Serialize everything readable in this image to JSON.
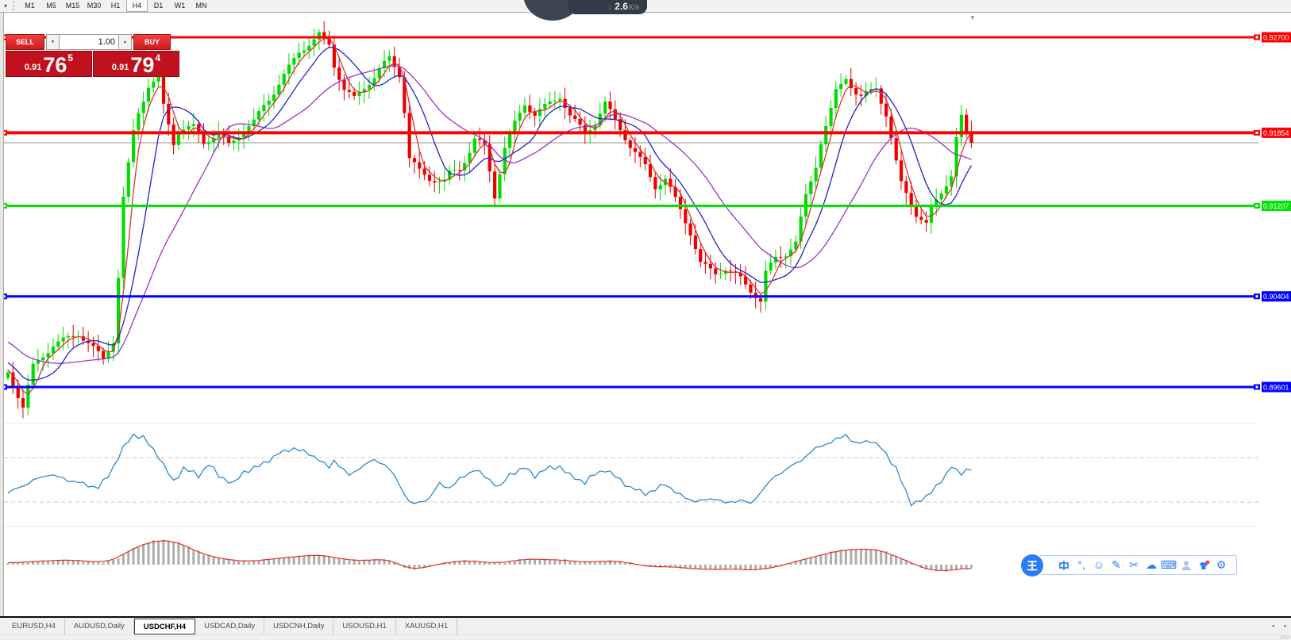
{
  "toolbar": {
    "timeframes": [
      "M1",
      "M5",
      "M15",
      "M30",
      "H1",
      "H4",
      "D1",
      "W1",
      "MN"
    ],
    "active_timeframe": "H4"
  },
  "one_click": {
    "sell_label": "SELL",
    "buy_label": "BUY",
    "volume": "1.00",
    "bid": {
      "small": "0.91",
      "big": "76",
      "sup": "5"
    },
    "ask": {
      "small": "0.91",
      "big": "79",
      "sup": "4"
    }
  },
  "net_overlay": {
    "down_speed": "2.6",
    "unit": "K/s"
  },
  "icons": {
    "toolbar_caret": "▾",
    "spinner_down": "▼",
    "spinner_up": "▲",
    "panel_collapse": "▼",
    "net_down_arrow": "↓",
    "tab_scroll_left": "◄",
    "tab_scroll_right": "►",
    "emoji": "☺",
    "handwriting": "✎",
    "screenshot": "✂",
    "cloud": "☁",
    "keyboard": "⌨",
    "settings": "⚙",
    "punctuation": "°,"
  },
  "chart": {
    "symbol": "USDCHF",
    "period": "H4",
    "bid_price": 0.91765,
    "colors": {
      "bull": "#00DC00",
      "bear": "#EE0000",
      "ma_fast": "#D83434",
      "ma_mid": "#2222CC",
      "ma_slow": "#9933CC",
      "indicator_line": "#2E86D0",
      "histogram": "#ADADAD",
      "signal": "#E03030",
      "bid_line": "#909090",
      "level_dash": "#C8C8C8"
    },
    "hlines": [
      {
        "price": "0.92700",
        "color": "#FF0000",
        "width": 3
      },
      {
        "price": "0.91854",
        "color": "#FF0000",
        "width": 4
      },
      {
        "price": "0.91207",
        "color": "#00E400",
        "width": 3
      },
      {
        "price": "0.90404",
        "color": "#0000FF",
        "width": 3
      },
      {
        "price": "0.89601",
        "color": "#0000FF",
        "width": 3
      }
    ],
    "candle_pivots": [
      [
        0,
        0.8973
      ],
      [
        3,
        0.8941
      ],
      [
        5,
        0.8976
      ],
      [
        9,
        0.8994
      ],
      [
        14,
        0.9004
      ],
      [
        16,
        0.8996
      ],
      [
        19,
        0.8983
      ],
      [
        21,
        0.9
      ],
      [
        22,
        0.9057
      ],
      [
        23,
        0.9127
      ],
      [
        25,
        0.9187
      ],
      [
        26,
        0.9205
      ],
      [
        28,
        0.9229
      ],
      [
        30,
        0.9236
      ],
      [
        31,
        0.9212
      ],
      [
        33,
        0.918
      ],
      [
        34,
        0.9191
      ],
      [
        37,
        0.9194
      ],
      [
        39,
        0.918
      ],
      [
        42,
        0.9187
      ],
      [
        44,
        0.9176
      ],
      [
        46,
        0.9184
      ],
      [
        49,
        0.9194
      ],
      [
        51,
        0.9208
      ],
      [
        53,
        0.9219
      ],
      [
        56,
        0.924
      ],
      [
        58,
        0.9254
      ],
      [
        61,
        0.9264
      ],
      [
        62,
        0.9269
      ],
      [
        64,
        0.9261
      ],
      [
        65,
        0.9243
      ],
      [
        67,
        0.9222
      ],
      [
        69,
        0.9215
      ],
      [
        71,
        0.9226
      ],
      [
        73,
        0.9236
      ],
      [
        74,
        0.9243
      ],
      [
        76,
        0.9254
      ],
      [
        78,
        0.924
      ],
      [
        79,
        0.9208
      ],
      [
        80,
        0.9166
      ],
      [
        82,
        0.9155
      ],
      [
        84,
        0.9148
      ],
      [
        87,
        0.9145
      ],
      [
        88,
        0.9152
      ],
      [
        90,
        0.9155
      ],
      [
        92,
        0.917
      ],
      [
        93,
        0.918
      ],
      [
        95,
        0.9173
      ],
      [
        97,
        0.9128
      ],
      [
        99,
        0.917
      ],
      [
        101,
        0.9191
      ],
      [
        103,
        0.9208
      ],
      [
        105,
        0.9198
      ],
      [
        107,
        0.9205
      ],
      [
        110,
        0.9215
      ],
      [
        112,
        0.9198
      ],
      [
        115,
        0.9184
      ],
      [
        117,
        0.9194
      ],
      [
        119,
        0.9212
      ],
      [
        122,
        0.9191
      ],
      [
        124,
        0.9176
      ],
      [
        127,
        0.9159
      ],
      [
        129,
        0.9141
      ],
      [
        131,
        0.9148
      ],
      [
        134,
        0.912
      ],
      [
        136,
        0.9099
      ],
      [
        138,
        0.9071
      ],
      [
        141,
        0.9061
      ],
      [
        143,
        0.9064
      ],
      [
        146,
        0.9054
      ],
      [
        148,
        0.9043
      ],
      [
        150,
        0.9033
      ],
      [
        151,
        0.9058
      ],
      [
        153,
        0.9071
      ],
      [
        155,
        0.9075
      ],
      [
        157,
        0.9085
      ],
      [
        159,
        0.9127
      ],
      [
        161,
        0.9155
      ],
      [
        162,
        0.9176
      ],
      [
        164,
        0.9205
      ],
      [
        165,
        0.9222
      ],
      [
        167,
        0.9236
      ],
      [
        169,
        0.9222
      ],
      [
        170,
        0.9219
      ],
      [
        172,
        0.9226
      ],
      [
        173,
        0.9229
      ],
      [
        175,
        0.9205
      ],
      [
        177,
        0.9162
      ],
      [
        178,
        0.9144
      ],
      [
        180,
        0.9127
      ],
      [
        181,
        0.9116
      ],
      [
        183,
        0.9106
      ],
      [
        184,
        0.912
      ],
      [
        186,
        0.9134
      ],
      [
        188,
        0.9148
      ],
      [
        189,
        0.918
      ],
      [
        190,
        0.9198
      ],
      [
        191,
        0.9183
      ],
      [
        192,
        0.91765
      ]
    ]
  },
  "indicator1": {
    "levels": [
      70,
      30
    ],
    "pivots": [
      [
        0,
        37.9
      ],
      [
        3,
        45
      ],
      [
        8,
        55
      ],
      [
        13,
        48.6
      ],
      [
        18,
        42.9
      ],
      [
        20,
        53.6
      ],
      [
        23,
        78.6
      ],
      [
        25,
        90.7
      ],
      [
        27,
        87.9
      ],
      [
        30,
        71.4
      ],
      [
        33,
        47.9
      ],
      [
        35,
        60.7
      ],
      [
        38,
        53.6
      ],
      [
        40,
        64.3
      ],
      [
        42,
        53.6
      ],
      [
        45,
        46.4
      ],
      [
        47,
        57.1
      ],
      [
        50,
        62.1
      ],
      [
        52,
        67.9
      ],
      [
        54,
        73.6
      ],
      [
        57,
        78.6
      ],
      [
        59,
        75
      ],
      [
        61,
        71.4
      ],
      [
        64,
        60.7
      ],
      [
        65,
        67.9
      ],
      [
        68,
        53.6
      ],
      [
        70,
        60.7
      ],
      [
        73,
        67.9
      ],
      [
        75,
        64.3
      ],
      [
        77,
        53.6
      ],
      [
        80,
        30
      ],
      [
        81,
        27.9
      ],
      [
        84,
        33.6
      ],
      [
        86,
        46.4
      ],
      [
        88,
        42.9
      ],
      [
        91,
        53.6
      ],
      [
        93,
        59.3
      ],
      [
        96,
        50
      ],
      [
        98,
        42.9
      ],
      [
        100,
        55
      ],
      [
        103,
        60.7
      ],
      [
        105,
        53.6
      ],
      [
        107,
        59.3
      ],
      [
        110,
        62.1
      ],
      [
        112,
        53.6
      ],
      [
        115,
        47.9
      ],
      [
        117,
        55
      ],
      [
        119,
        59.3
      ],
      [
        122,
        50
      ],
      [
        124,
        42.9
      ],
      [
        127,
        37.9
      ],
      [
        129,
        40.7
      ],
      [
        131,
        46.4
      ],
      [
        134,
        35.7
      ],
      [
        136,
        32.1
      ],
      [
        138,
        30.7
      ],
      [
        141,
        33.6
      ],
      [
        143,
        28.6
      ],
      [
        146,
        32.1
      ],
      [
        148,
        27.9
      ],
      [
        150,
        39.3
      ],
      [
        153,
        53.6
      ],
      [
        155,
        59.3
      ],
      [
        157,
        64.3
      ],
      [
        160,
        75
      ],
      [
        162,
        80.7
      ],
      [
        165,
        85.7
      ],
      [
        167,
        90.7
      ],
      [
        169,
        82.1
      ],
      [
        172,
        85.7
      ],
      [
        174,
        78.6
      ],
      [
        177,
        60.7
      ],
      [
        179,
        37.9
      ],
      [
        180,
        28.6
      ],
      [
        183,
        33.6
      ],
      [
        185,
        45
      ],
      [
        187,
        53.6
      ],
      [
        188,
        62.1
      ],
      [
        190,
        56.4
      ],
      [
        192,
        59.3
      ]
    ]
  },
  "indicator2": {
    "pivots": [
      [
        0,
        2
      ],
      [
        3,
        3
      ],
      [
        8,
        5
      ],
      [
        13,
        6
      ],
      [
        16,
        4
      ],
      [
        19,
        3
      ],
      [
        22,
        8
      ],
      [
        24,
        18
      ],
      [
        27,
        25
      ],
      [
        29,
        30
      ],
      [
        31,
        31
      ],
      [
        34,
        28
      ],
      [
        36,
        22
      ],
      [
        38,
        15
      ],
      [
        41,
        10
      ],
      [
        43,
        7
      ],
      [
        46,
        5
      ],
      [
        48,
        4
      ],
      [
        51,
        6
      ],
      [
        54,
        8
      ],
      [
        57,
        10
      ],
      [
        61,
        12
      ],
      [
        63,
        12
      ],
      [
        65,
        9
      ],
      [
        68,
        6
      ],
      [
        70,
        5
      ],
      [
        73,
        6
      ],
      [
        75,
        7
      ],
      [
        77,
        4
      ],
      [
        79,
        -3
      ],
      [
        80,
        -6
      ],
      [
        82,
        -5
      ],
      [
        84,
        -2
      ],
      [
        87,
        2
      ],
      [
        89,
        4
      ],
      [
        92,
        5
      ],
      [
        94,
        4
      ],
      [
        96,
        2
      ],
      [
        99,
        3
      ],
      [
        101,
        5
      ],
      [
        103,
        7
      ],
      [
        106,
        7
      ],
      [
        108,
        6
      ],
      [
        111,
        6
      ],
      [
        113,
        4
      ],
      [
        115,
        3
      ],
      [
        118,
        4
      ],
      [
        120,
        5
      ],
      [
        123,
        3
      ],
      [
        125,
        1
      ],
      [
        127,
        -2
      ],
      [
        130,
        -3
      ],
      [
        132,
        -2
      ],
      [
        134,
        -4
      ],
      [
        137,
        -5
      ],
      [
        139,
        -6
      ],
      [
        142,
        -6
      ],
      [
        144,
        -5
      ],
      [
        146,
        -6
      ],
      [
        149,
        -7
      ],
      [
        151,
        -5
      ],
      [
        153,
        -3
      ],
      [
        156,
        2
      ],
      [
        158,
        6
      ],
      [
        161,
        10
      ],
      [
        163,
        14
      ],
      [
        165,
        17
      ],
      [
        168,
        19
      ],
      [
        170,
        20
      ],
      [
        173,
        19
      ],
      [
        175,
        16
      ],
      [
        177,
        10
      ],
      [
        180,
        3
      ],
      [
        182,
        -4
      ],
      [
        184,
        -7
      ],
      [
        187,
        -8
      ],
      [
        189,
        -6
      ],
      [
        192,
        -4
      ]
    ]
  },
  "ime": {
    "logo_glyph": "wang-character",
    "icon_names": [
      "chinese-mode",
      "punctuation",
      "emoji",
      "handwriting",
      "screenshot",
      "cloud",
      "keyboard",
      "account",
      "skin",
      "settings"
    ]
  },
  "tabs": {
    "items": [
      {
        "label": "EURUSD,H4",
        "active": false
      },
      {
        "label": "AUDUSD,Daily",
        "active": false
      },
      {
        "label": "USDCHF,H4",
        "active": true
      },
      {
        "label": "USDCAD,Daily",
        "active": false
      },
      {
        "label": "USDCNH,Daily",
        "active": false
      },
      {
        "label": "USOUSD,H1",
        "active": false
      },
      {
        "label": "XAUUSD,H1",
        "active": false
      }
    ]
  }
}
